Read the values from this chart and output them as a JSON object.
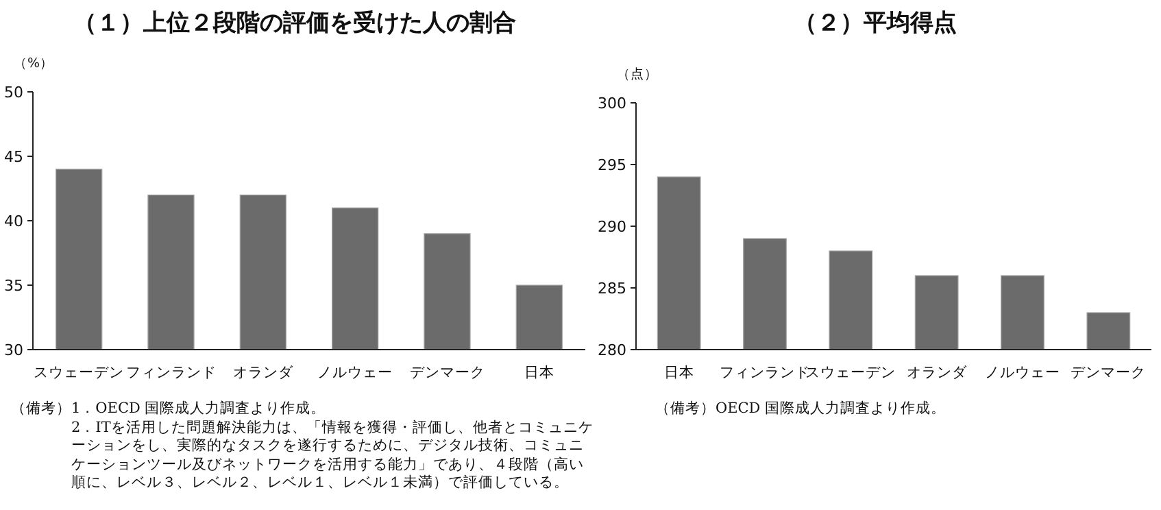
{
  "chart_data": [
    {
      "type": "bar",
      "title": "（１）上位２段階の評価を受けた人の割合",
      "ylabel": "（%）",
      "categories": [
        "スウェーデン",
        "フィンランド",
        "オランダ",
        "ノルウェー",
        "デンマーク",
        "日本"
      ],
      "values": [
        44,
        42,
        42,
        41,
        39,
        35
      ],
      "color": "#6b6b6b",
      "ylim": [
        30,
        50
      ],
      "yticks": [
        30,
        35,
        40,
        45,
        50
      ],
      "annotations": [
        "（備考）",
        "1．OECD 国際成人力調査より作成。",
        "2．ITを活用した問題解決能力は、「情報を獲得・評価し、他者とコミュニケーションをし、実際的なタスクを遂行するために、デジタル技術、コミュニケーションツール及びネットワークを活用する能力」であり、４段階（高い順に、レベル３、レベル２、レベル１、レベル１未満）で評価している。"
      ]
    },
    {
      "type": "bar",
      "title": "（２）平均得点",
      "ylabel": "（点）",
      "categories": [
        "日本",
        "フィンランド",
        "スウェーデン",
        "オランダ",
        "ノルウェー",
        "デンマーク"
      ],
      "values": [
        294,
        289,
        288,
        286,
        286,
        283
      ],
      "color": "#6b6b6b",
      "ylim": [
        280,
        300
      ],
      "yticks": [
        280,
        285,
        290,
        295,
        300
      ],
      "annotations": [
        "（備考）",
        "OECD 国際成人力調査より作成。"
      ]
    }
  ]
}
